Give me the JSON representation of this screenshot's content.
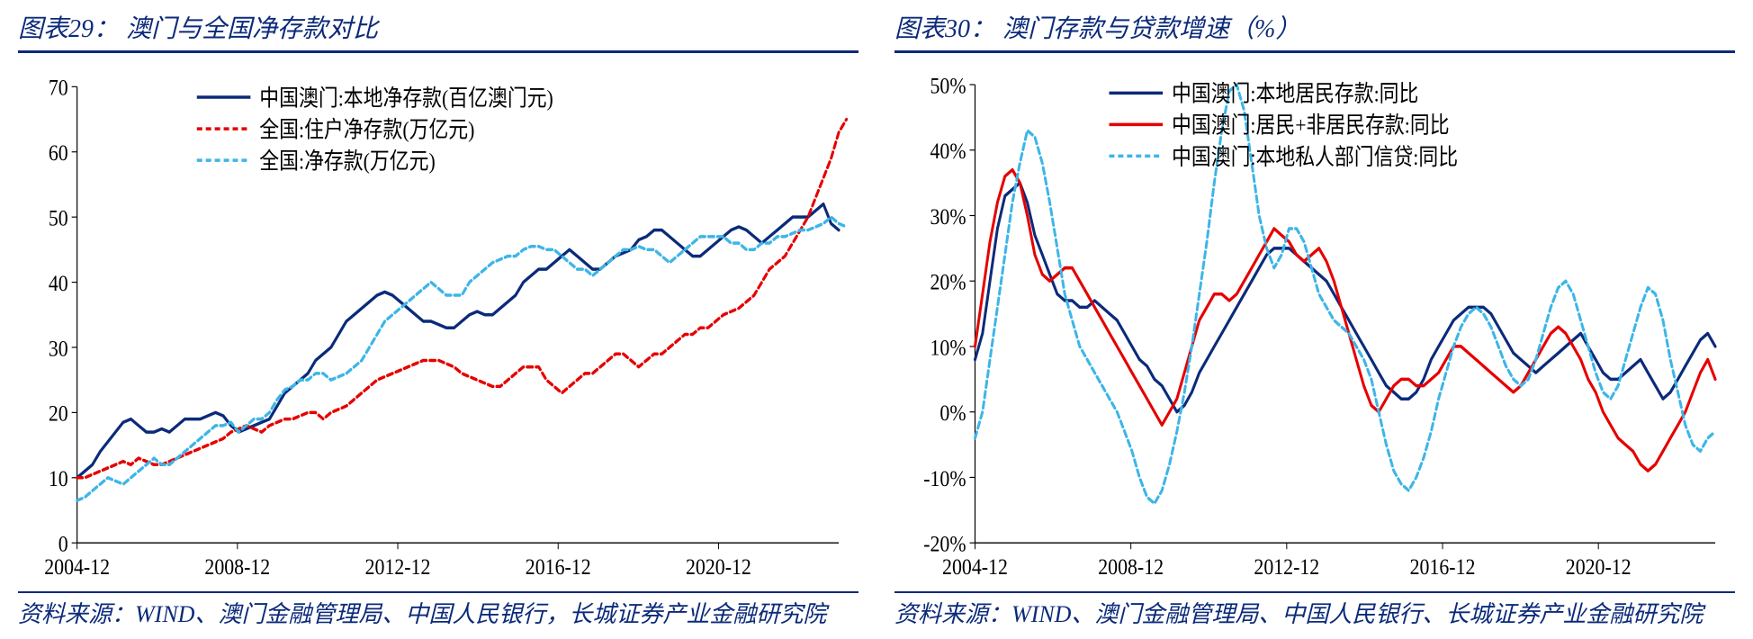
{
  "left": {
    "title_num": "图表29：",
    "title_text": "澳门与全国净存款对比",
    "source": "资料来源：WIND、澳门金融管理局、中国人民银行，长城证券产业金融研究院",
    "chart": {
      "type": "line",
      "background_color": "#ffffff",
      "x": {
        "domain": [
          "2004-12",
          "2023-12"
        ],
        "ticks": [
          "2004-12",
          "2008-12",
          "2012-12",
          "2016-12",
          "2020-12"
        ],
        "label_fontsize": 22
      },
      "y": {
        "lim": [
          0,
          70
        ],
        "tick_step": 10,
        "ticks": [
          0,
          10,
          20,
          30,
          40,
          50,
          60,
          70
        ],
        "label_fontsize": 22
      },
      "legend": {
        "position": "top-center",
        "fontsize": 22
      },
      "series": [
        {
          "name": "中国澳门:本地净存款(百亿澳门元)",
          "color": "#0b2a7a",
          "dash": "solid",
          "width": 3,
          "data": [
            10,
            11,
            12,
            14,
            15.5,
            17,
            18.5,
            19,
            18,
            17,
            17,
            17.5,
            17,
            18,
            19,
            19,
            19,
            19.5,
            20,
            19.5,
            18,
            17,
            17.5,
            18,
            18.5,
            19,
            21,
            23,
            24,
            25,
            26,
            28,
            29,
            30,
            32,
            34,
            35,
            36,
            37,
            38,
            38.5,
            38,
            37,
            36,
            35,
            34,
            34,
            33.5,
            33,
            33,
            34,
            35,
            35.5,
            35,
            35,
            36,
            37,
            38,
            40,
            41,
            42,
            42,
            43,
            44,
            45,
            44,
            43,
            42,
            42,
            43,
            44,
            44.5,
            45,
            46.5,
            47,
            48,
            48,
            47,
            46,
            45,
            44,
            44,
            45,
            46,
            47,
            48,
            48.5,
            48,
            47,
            46,
            47,
            48,
            49,
            50,
            50,
            50,
            51,
            52,
            49,
            48
          ]
        },
        {
          "name": "全国:住户净存款(万亿元)",
          "color": "#e60000",
          "dash": "6,4",
          "width": 3,
          "data": [
            10,
            10,
            10.5,
            11,
            11.5,
            12,
            12.5,
            12,
            13,
            12.5,
            12,
            12,
            12.5,
            13,
            13.5,
            14,
            14.5,
            15,
            15.5,
            16,
            17,
            17.5,
            18,
            17.5,
            17,
            18,
            18.5,
            19,
            19,
            19.5,
            20,
            20,
            19,
            20,
            20.5,
            21,
            22,
            23,
            24,
            25,
            25.5,
            26,
            26.5,
            27,
            27.5,
            28,
            28,
            28,
            27.5,
            27,
            26,
            25.5,
            25,
            24.5,
            24,
            24,
            25,
            26,
            27,
            27,
            27,
            25,
            24,
            23,
            24,
            25,
            26,
            26,
            27,
            28,
            29,
            29,
            28,
            27,
            28,
            29,
            29,
            30,
            31,
            32,
            32,
            33,
            33,
            34,
            35,
            35.5,
            36,
            37,
            38,
            40,
            42,
            43,
            44,
            46,
            48,
            50,
            53,
            56,
            59,
            63,
            65
          ]
        },
        {
          "name": "全国:净存款(万亿元)",
          "color": "#3db5e7",
          "dash": "6,4",
          "width": 3,
          "data": [
            6.5,
            7,
            8,
            9,
            10,
            9.5,
            9,
            10,
            11,
            12,
            13,
            12,
            12,
            13,
            14,
            15,
            16,
            17,
            18,
            18,
            18.5,
            17,
            18,
            19,
            19,
            20,
            22,
            23.5,
            24,
            25,
            25,
            26,
            26,
            25,
            25.5,
            26,
            27,
            28,
            30,
            32,
            34,
            35,
            36,
            37,
            38,
            39,
            40,
            39,
            38,
            38,
            38,
            40,
            41,
            42,
            43,
            43.5,
            44,
            44,
            45,
            45.5,
            45.5,
            45,
            45,
            44,
            43,
            42,
            42,
            41,
            42,
            43,
            44,
            45,
            45,
            45.5,
            45,
            45,
            44,
            43,
            44,
            45,
            46,
            47,
            47,
            47,
            47,
            46,
            46,
            45,
            45,
            46,
            46,
            47,
            47,
            47.5,
            48,
            48,
            48.5,
            49,
            50,
            49,
            48.5
          ]
        }
      ]
    }
  },
  "right": {
    "title_num": "图表30：",
    "title_text": "澳门存款与贷款增速（%）",
    "source": "资料来源：WIND、澳门金融管理局、中国人民银行、长城证券产业金融研究院",
    "chart": {
      "type": "line",
      "background_color": "#ffffff",
      "x": {
        "domain": [
          "2004-12",
          "2023-12"
        ],
        "ticks": [
          "2004-12",
          "2008-12",
          "2012-12",
          "2016-12",
          "2020-12"
        ],
        "label_fontsize": 22
      },
      "y": {
        "lim": [
          -20,
          50
        ],
        "tick_step": 10,
        "ticks": [
          -20,
          -10,
          0,
          10,
          20,
          30,
          40,
          50
        ],
        "label_fontsize": 22,
        "tick_format": "percent"
      },
      "legend": {
        "position": "top-center",
        "fontsize": 22
      },
      "series": [
        {
          "name": "中国澳门:本地居民存款:同比",
          "color": "#0b2a7a",
          "dash": "solid",
          "width": 3,
          "data": [
            8,
            12,
            20,
            28,
            33,
            34,
            35,
            32,
            27,
            24,
            21,
            18,
            17,
            17,
            16,
            16,
            17,
            16,
            15,
            14,
            12,
            10,
            8,
            7,
            5,
            4,
            2,
            0,
            1,
            3,
            6,
            8,
            10,
            12,
            14,
            16,
            18,
            20,
            22,
            24,
            25,
            25,
            25,
            24,
            23,
            22,
            21,
            20,
            18,
            16,
            14,
            12,
            10,
            8,
            6,
            4,
            3,
            2,
            2,
            3,
            5,
            8,
            10,
            12,
            14,
            15,
            16,
            16,
            16,
            15,
            13,
            11,
            9,
            8,
            7,
            6,
            7,
            8,
            9,
            10,
            11,
            12,
            10,
            8,
            6,
            5,
            5,
            6,
            7,
            8,
            6,
            4,
            2,
            3,
            5,
            7,
            9,
            11,
            12,
            10
          ]
        },
        {
          "name": "中国澳门:居民+非居民存款:同比",
          "color": "#e60000",
          "dash": "solid",
          "width": 3,
          "data": [
            10,
            18,
            26,
            32,
            36,
            37,
            35,
            30,
            24,
            21,
            20,
            21,
            22,
            22,
            20,
            18,
            16,
            14,
            12,
            10,
            8,
            6,
            4,
            2,
            0,
            -2,
            0,
            2,
            6,
            10,
            14,
            16,
            18,
            18,
            17,
            18,
            20,
            22,
            24,
            26,
            28,
            27,
            26,
            24,
            23,
            24,
            25,
            23,
            20,
            16,
            12,
            8,
            4,
            1,
            0,
            2,
            4,
            5,
            5,
            4,
            4,
            5,
            6,
            8,
            10,
            10,
            9,
            8,
            7,
            6,
            5,
            4,
            3,
            4,
            6,
            8,
            10,
            12,
            13,
            12,
            10,
            8,
            5,
            3,
            0,
            -2,
            -4,
            -5,
            -6,
            -8,
            -9,
            -8,
            -6,
            -4,
            -2,
            0,
            3,
            6,
            8,
            5
          ]
        },
        {
          "name": "中国澳门:本地私人部门信贷:同比",
          "color": "#3db5e7",
          "dash": "6,4",
          "width": 3,
          "data": [
            -4,
            0,
            8,
            16,
            24,
            32,
            38,
            43,
            42,
            38,
            32,
            25,
            18,
            14,
            10,
            8,
            6,
            4,
            2,
            0,
            -3,
            -6,
            -10,
            -13,
            -14,
            -12,
            -8,
            -3,
            3,
            10,
            18,
            26,
            35,
            43,
            49,
            50,
            46,
            38,
            30,
            25,
            22,
            24,
            28,
            28,
            26,
            22,
            18,
            16,
            14,
            13,
            12,
            10,
            8,
            5,
            0,
            -5,
            -9,
            -11,
            -12,
            -10,
            -7,
            -3,
            2,
            6,
            10,
            13,
            15,
            16,
            15,
            13,
            10,
            7,
            5,
            4,
            5,
            8,
            12,
            16,
            19,
            20,
            18,
            14,
            10,
            6,
            3,
            2,
            4,
            8,
            12,
            16,
            19,
            18,
            14,
            8,
            3,
            -2,
            -5,
            -6,
            -4,
            -3
          ]
        }
      ]
    }
  }
}
